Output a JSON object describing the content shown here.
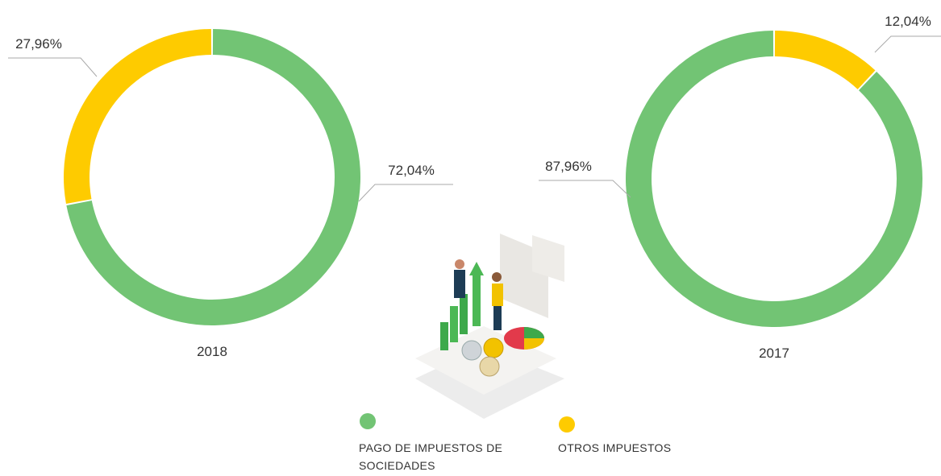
{
  "legend": {
    "labels": [
      "PAGO DE IMPUESTOS DE SOCIEDADES",
      "OTROS IMPUESTOS"
    ],
    "colors": [
      "#72c474",
      "#fecb00"
    ]
  },
  "chart_data": [
    {
      "type": "pie",
      "donut": true,
      "direction": "clockwise",
      "title": "2018",
      "values": [
        72.04,
        27.96
      ],
      "value_labels": [
        "72,04%",
        "27,96%"
      ]
    },
    {
      "type": "pie",
      "donut": true,
      "direction": "counterclockwise",
      "title": "2017",
      "values": [
        87.96,
        12.04
      ],
      "value_labels": [
        "87,96%",
        "12,04%"
      ]
    }
  ]
}
